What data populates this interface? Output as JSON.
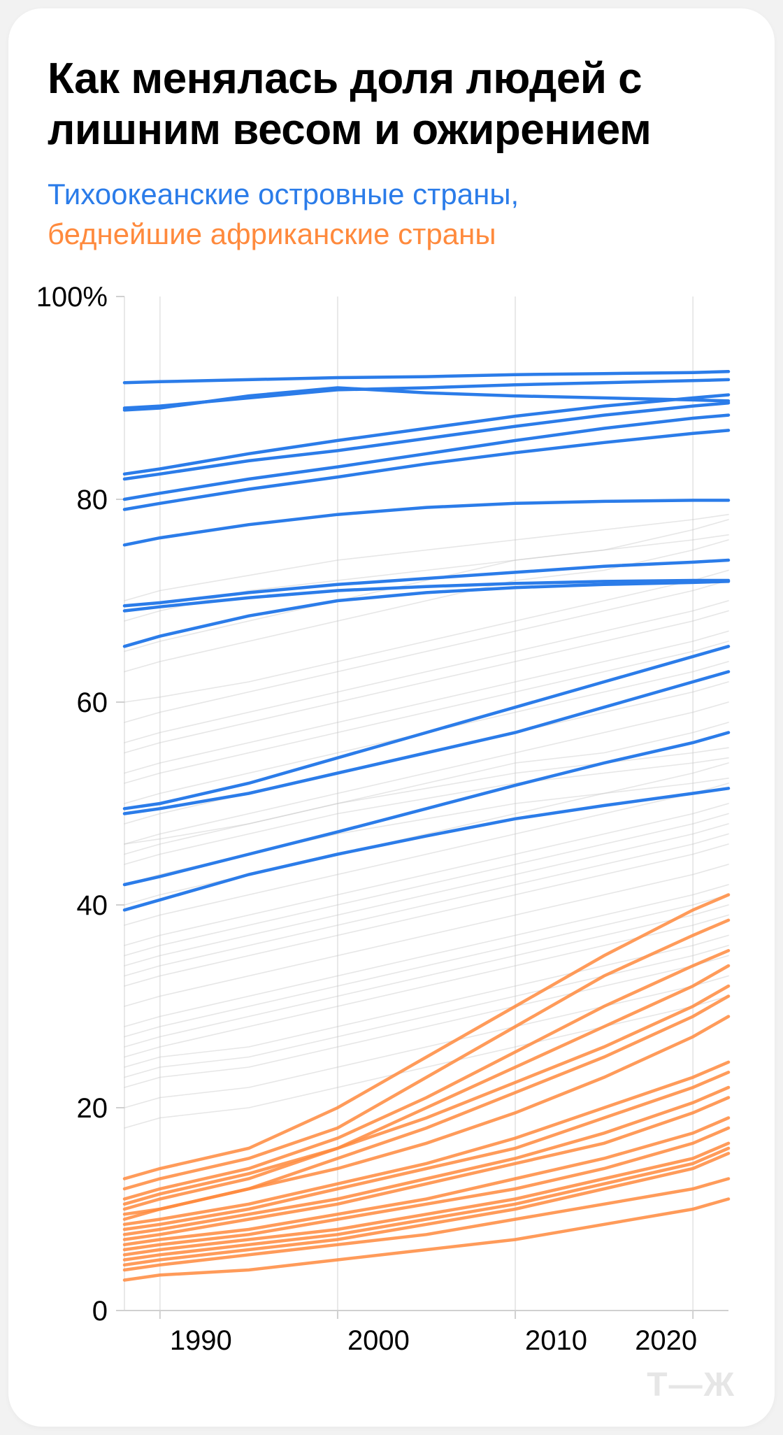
{
  "card": {
    "background": "#ffffff",
    "border_radius": 48
  },
  "title": {
    "text": "Как менялась доля людей с лишним весом и ожирением",
    "fontsize": 62,
    "fontweight": 800,
    "color": "#000000"
  },
  "subtitle": {
    "line1": "Тихоокеанские островные страны,",
    "line1_color": "#2b7ce9",
    "line2": "беднейшие африканские страны",
    "line2_color": "#ff8a3d",
    "fontsize": 42
  },
  "chart": {
    "type": "line",
    "x_years": [
      1988,
      1990,
      1995,
      2000,
      2005,
      2010,
      2015,
      2020,
      2022
    ],
    "xlim": [
      1988,
      2022
    ],
    "ylim": [
      0,
      100
    ],
    "x_ticks": [
      1990,
      2000,
      2010,
      2020
    ],
    "y_ticks": [
      0,
      20,
      40,
      60,
      80,
      100
    ],
    "y_suffix_top": "100%",
    "grid_color": "#e8e8e8",
    "axis_color": "#d0d0d0",
    "tick_fontsize": 40,
    "line_width_highlight": 4.5,
    "line_width_bg": 1.6,
    "colors": {
      "pacific": "#2b7ce9",
      "africa": "#ff8a3d",
      "background_lines": "#c8c8c8",
      "background_lines_opacity": 0.45
    },
    "pacific_series": [
      [
        91.5,
        91.6,
        91.8,
        92.0,
        92.1,
        92.3,
        92.4,
        92.5,
        92.6
      ],
      [
        89.0,
        89.2,
        90.0,
        90.8,
        91.0,
        91.3,
        91.5,
        91.7,
        91.8
      ],
      [
        88.8,
        89.0,
        90.2,
        91.0,
        90.5,
        90.2,
        90.0,
        89.8,
        89.7
      ],
      [
        82.5,
        83.0,
        84.5,
        85.8,
        87.0,
        88.2,
        89.2,
        90.0,
        90.3
      ],
      [
        82.0,
        82.5,
        83.8,
        84.8,
        86.0,
        87.2,
        88.3,
        89.2,
        89.5
      ],
      [
        80.0,
        80.6,
        82.0,
        83.2,
        84.5,
        85.8,
        87.0,
        88.0,
        88.3
      ],
      [
        79.0,
        79.6,
        81.0,
        82.2,
        83.5,
        84.6,
        85.6,
        86.5,
        86.8
      ],
      [
        75.5,
        76.2,
        77.5,
        78.5,
        79.2,
        79.6,
        79.8,
        79.9,
        79.9
      ],
      [
        69.5,
        69.8,
        70.8,
        71.6,
        72.2,
        72.8,
        73.4,
        73.8,
        74.0
      ],
      [
        69.0,
        69.4,
        70.3,
        71.0,
        71.4,
        71.7,
        71.9,
        72.0,
        72.0
      ],
      [
        65.5,
        66.5,
        68.5,
        70.0,
        70.8,
        71.3,
        71.6,
        71.8,
        71.9
      ],
      [
        49.5,
        50.0,
        52.0,
        54.5,
        57.0,
        59.5,
        62.0,
        64.5,
        65.5
      ],
      [
        49.0,
        49.5,
        51.0,
        53.0,
        55.0,
        57.0,
        59.5,
        62.0,
        63.0
      ],
      [
        42.0,
        42.8,
        45.0,
        47.2,
        49.5,
        51.8,
        54.0,
        56.0,
        57.0
      ],
      [
        39.5,
        40.5,
        43.0,
        45.0,
        46.8,
        48.5,
        49.8,
        51.0,
        51.5
      ]
    ],
    "africa_series": [
      [
        13.0,
        14.0,
        16.0,
        20.0,
        25.0,
        30.0,
        35.0,
        39.5,
        41.0
      ],
      [
        12.0,
        13.0,
        15.0,
        18.0,
        23.0,
        28.0,
        33.0,
        37.0,
        38.5
      ],
      [
        11.0,
        12.0,
        14.0,
        17.0,
        21.0,
        25.5,
        30.0,
        34.0,
        35.5
      ],
      [
        10.0,
        11.0,
        13.0,
        16.0,
        20.0,
        24.0,
        28.0,
        32.0,
        34.0
      ],
      [
        10.5,
        11.5,
        13.5,
        16.0,
        19.0,
        22.5,
        26.0,
        30.0,
        32.0
      ],
      [
        9.0,
        10.0,
        12.0,
        15.0,
        18.0,
        21.5,
        25.0,
        29.0,
        31.0
      ],
      [
        9.5,
        10.0,
        12.0,
        14.0,
        16.5,
        19.5,
        23.0,
        27.0,
        29.0
      ],
      [
        8.5,
        9.0,
        10.5,
        12.5,
        14.5,
        17.0,
        20.0,
        23.0,
        24.5
      ],
      [
        8.0,
        8.5,
        10.0,
        12.0,
        14.0,
        16.0,
        19.0,
        22.0,
        23.5
      ],
      [
        7.5,
        8.0,
        9.5,
        11.0,
        13.0,
        15.0,
        17.5,
        20.5,
        22.0
      ],
      [
        7.0,
        7.5,
        9.0,
        10.5,
        12.5,
        14.5,
        16.5,
        19.5,
        21.0
      ],
      [
        6.5,
        7.0,
        8.0,
        9.5,
        11.0,
        13.0,
        15.0,
        17.5,
        19.0
      ],
      [
        6.0,
        6.5,
        7.5,
        9.0,
        10.5,
        12.0,
        14.0,
        16.5,
        18.0
      ],
      [
        5.5,
        6.0,
        7.0,
        8.0,
        9.5,
        11.0,
        13.0,
        15.0,
        16.5
      ],
      [
        5.0,
        5.5,
        6.5,
        7.5,
        9.0,
        10.5,
        12.5,
        14.5,
        16.0
      ],
      [
        4.5,
        5.0,
        6.0,
        7.0,
        8.5,
        10.0,
        12.0,
        14.0,
        15.5
      ],
      [
        4.0,
        4.5,
        5.5,
        6.5,
        7.5,
        9.0,
        10.5,
        12.0,
        13.0
      ],
      [
        3.0,
        3.5,
        4.0,
        5.0,
        6.0,
        7.0,
        8.5,
        10.0,
        11.0
      ]
    ],
    "background_series": [
      [
        60,
        60.5,
        62,
        64,
        66,
        68,
        70,
        72,
        73
      ],
      [
        58,
        59,
        61,
        63,
        65,
        67,
        69,
        71,
        72
      ],
      [
        56,
        57,
        59,
        61,
        63,
        65,
        67,
        69,
        70
      ],
      [
        55,
        56,
        58,
        60,
        62,
        64,
        66,
        68,
        69
      ],
      [
        53,
        54,
        56,
        58,
        60,
        62,
        64,
        66,
        67
      ],
      [
        52,
        53,
        55,
        57,
        59,
        61,
        63,
        65,
        66
      ],
      [
        50,
        51,
        53,
        55,
        57,
        59,
        61,
        63,
        64
      ],
      [
        48,
        49,
        51,
        53,
        55,
        57,
        59,
        61,
        62
      ],
      [
        46,
        47,
        49,
        51,
        53,
        55,
        57,
        59,
        60
      ],
      [
        45,
        46,
        48,
        50,
        52,
        54,
        55,
        57,
        58
      ],
      [
        46,
        46.5,
        48,
        50,
        51.5,
        53,
        54,
        55,
        55.5
      ],
      [
        44,
        45,
        47,
        49,
        50.5,
        52,
        53,
        54,
        54.5
      ],
      [
        42,
        43,
        45,
        47,
        48.5,
        50,
        51,
        52,
        52.5
      ],
      [
        40,
        41,
        43,
        45,
        47,
        49,
        51,
        53,
        54
      ],
      [
        38,
        39,
        41,
        43,
        45,
        47,
        49,
        51,
        52
      ],
      [
        36,
        37,
        39,
        41,
        43,
        45,
        47,
        49,
        50
      ],
      [
        35,
        36,
        38,
        40,
        42,
        44,
        46,
        48,
        49
      ],
      [
        34,
        35,
        37,
        39,
        41,
        43,
        45,
        47,
        48
      ],
      [
        33,
        34,
        36,
        38,
        40,
        42,
        44,
        46,
        47
      ],
      [
        32,
        33,
        35,
        37,
        39,
        41,
        43,
        45,
        46
      ],
      [
        30,
        31,
        33,
        35,
        37,
        39,
        41,
        43,
        44
      ],
      [
        28,
        29,
        31,
        33,
        35,
        37,
        39,
        41,
        42
      ],
      [
        27,
        28,
        30,
        32,
        34,
        36,
        38,
        40,
        41
      ],
      [
        26,
        27,
        29,
        31,
        33,
        35,
        37,
        39,
        40
      ],
      [
        25,
        26,
        28,
        30,
        32,
        34,
        36,
        38,
        39
      ],
      [
        24,
        25,
        26,
        28,
        30,
        32,
        34,
        36,
        37
      ],
      [
        23,
        24,
        25,
        27,
        29,
        31,
        33,
        35,
        36
      ],
      [
        22,
        23,
        24,
        26,
        28,
        30,
        32,
        34,
        35
      ],
      [
        20,
        21,
        22,
        24,
        26,
        28,
        30,
        32,
        33
      ],
      [
        18,
        19,
        20,
        22,
        24,
        26,
        28,
        30,
        31
      ],
      [
        65,
        66,
        68,
        70,
        72,
        74,
        75,
        77,
        78
      ],
      [
        63,
        64,
        66,
        68,
        70,
        72,
        73,
        75,
        76
      ],
      [
        68,
        69,
        71,
        72,
        73,
        74,
        75,
        76,
        76.5
      ],
      [
        70,
        71,
        72.5,
        74,
        75,
        76,
        77,
        78,
        78.5
      ]
    ]
  },
  "logo": {
    "text": "Т—Ж",
    "color": "#e6e6e6",
    "fontsize": 48
  }
}
